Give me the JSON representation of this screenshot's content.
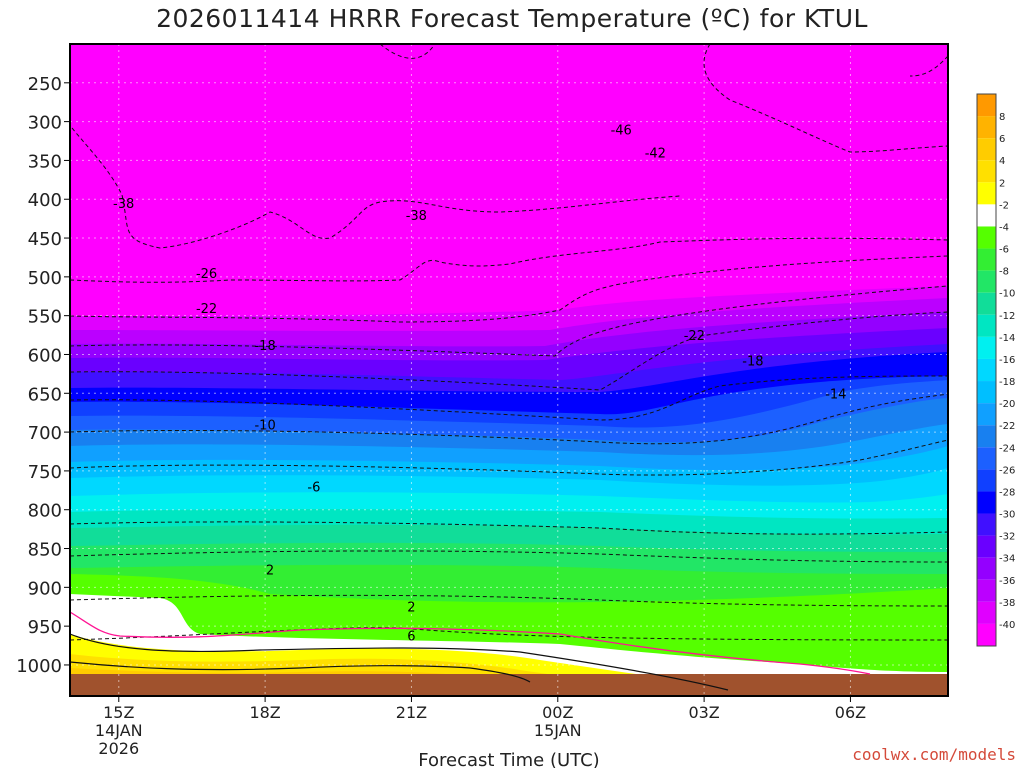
{
  "chart_data": {
    "type": "heatmap",
    "title": "2026011414 HRRR Forecast Temperature (ºC) for KTUL",
    "xlabel": "Forecast Time (UTC)",
    "ylabel": "",
    "x_ticks": [
      {
        "label": "15Z",
        "sub": [
          "14JAN",
          "2026"
        ],
        "hour": 0
      },
      {
        "label": "18Z",
        "sub": [],
        "hour": 3
      },
      {
        "label": "21Z",
        "sub": [],
        "hour": 6
      },
      {
        "label": "00Z",
        "sub": [
          "15JAN"
        ],
        "hour": 9
      },
      {
        "label": "03Z",
        "sub": [],
        "hour": 12
      },
      {
        "label": "06Z",
        "sub": [],
        "hour": 15
      }
    ],
    "xlim_hours": [
      -1,
      17
    ],
    "y_ticks": [
      250,
      300,
      350,
      400,
      450,
      500,
      550,
      600,
      650,
      700,
      750,
      800,
      850,
      900,
      950,
      1000
    ],
    "ylim_hPa": [
      200,
      1040
    ],
    "colorbar": {
      "labels": [
        "8",
        "6",
        "4",
        "2",
        "-2",
        "-4",
        "-6",
        "-8",
        "-10",
        "-12",
        "-14",
        "-16",
        "-18",
        "-20",
        "-22",
        "-24",
        "-26",
        "-28",
        "-30",
        "-32",
        "-34",
        "-36",
        "-38",
        "-40"
      ],
      "colors": [
        "#ff9900",
        "#ffb300",
        "#ffcc00",
        "#ffe000",
        "#ffff00",
        "#ffffff",
        "#55ff00",
        "#33ee33",
        "#22e666",
        "#11dd99",
        "#00e6c2",
        "#00f0f0",
        "#00d8ff",
        "#00bfff",
        "#10a0ff",
        "#1880f0",
        "#1c60ff",
        "#1040ff",
        "#0000ff",
        "#4010ff",
        "#6a00ff",
        "#9400ff",
        "#bb00ff",
        "#e000ff",
        "#ff00ff"
      ]
    },
    "contour_labels": [
      {
        "text": "-46",
        "x_hour": 10.3,
        "hPa": 310
      },
      {
        "text": "-42",
        "x_hour": 11.0,
        "hPa": 340
      },
      {
        "text": "-38",
        "x_hour": 0.1,
        "hPa": 405
      },
      {
        "text": "-38",
        "x_hour": 6.1,
        "hPa": 420
      },
      {
        "text": "-26",
        "x_hour": 1.8,
        "hPa": 495
      },
      {
        "text": "-22",
        "x_hour": 1.8,
        "hPa": 540
      },
      {
        "text": "-22",
        "x_hour": 11.8,
        "hPa": 575
      },
      {
        "text": "-18",
        "x_hour": 3.0,
        "hPa": 588
      },
      {
        "text": "-18",
        "x_hour": 13.0,
        "hPa": 608
      },
      {
        "text": "-14",
        "x_hour": 14.7,
        "hPa": 650
      },
      {
        "text": "-10",
        "x_hour": 3.0,
        "hPa": 690
      },
      {
        "text": "-6",
        "x_hour": 4.0,
        "hPa": 770
      },
      {
        "text": "2",
        "x_hour": 3.1,
        "hPa": 877
      },
      {
        "text": "2",
        "x_hour": 6.0,
        "hPa": 925
      },
      {
        "text": "6",
        "x_hour": 6.0,
        "hPa": 962
      }
    ]
  },
  "watermark": "coolwx.com/models"
}
